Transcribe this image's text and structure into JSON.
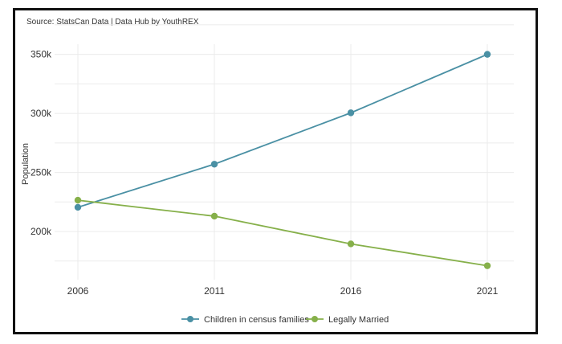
{
  "source_note": "Source: StatsCan Data | Data Hub by YouthREX",
  "colors": {
    "children": "#4a90a4",
    "married": "#86b04a",
    "grid": "#ebebeb"
  },
  "chart_data": {
    "type": "line",
    "x": [
      2006,
      2011,
      2016,
      2021
    ],
    "x_tick_labels": [
      "2006",
      "2011",
      "2016",
      "2021"
    ],
    "series": [
      {
        "name": "Children in census families",
        "values": [
          220500,
          257000,
          300500,
          350000
        ]
      },
      {
        "name": "Legally Married",
        "values": [
          226500,
          213000,
          189500,
          171000
        ]
      }
    ],
    "ylabel": "Population",
    "y_ticks": [
      200000,
      250000,
      300000,
      350000
    ],
    "y_tick_labels": [
      "200k",
      "250k",
      "300k",
      "350k"
    ],
    "ylim": [
      160000,
      360000
    ],
    "grid": true,
    "legend_position": "bottom"
  }
}
